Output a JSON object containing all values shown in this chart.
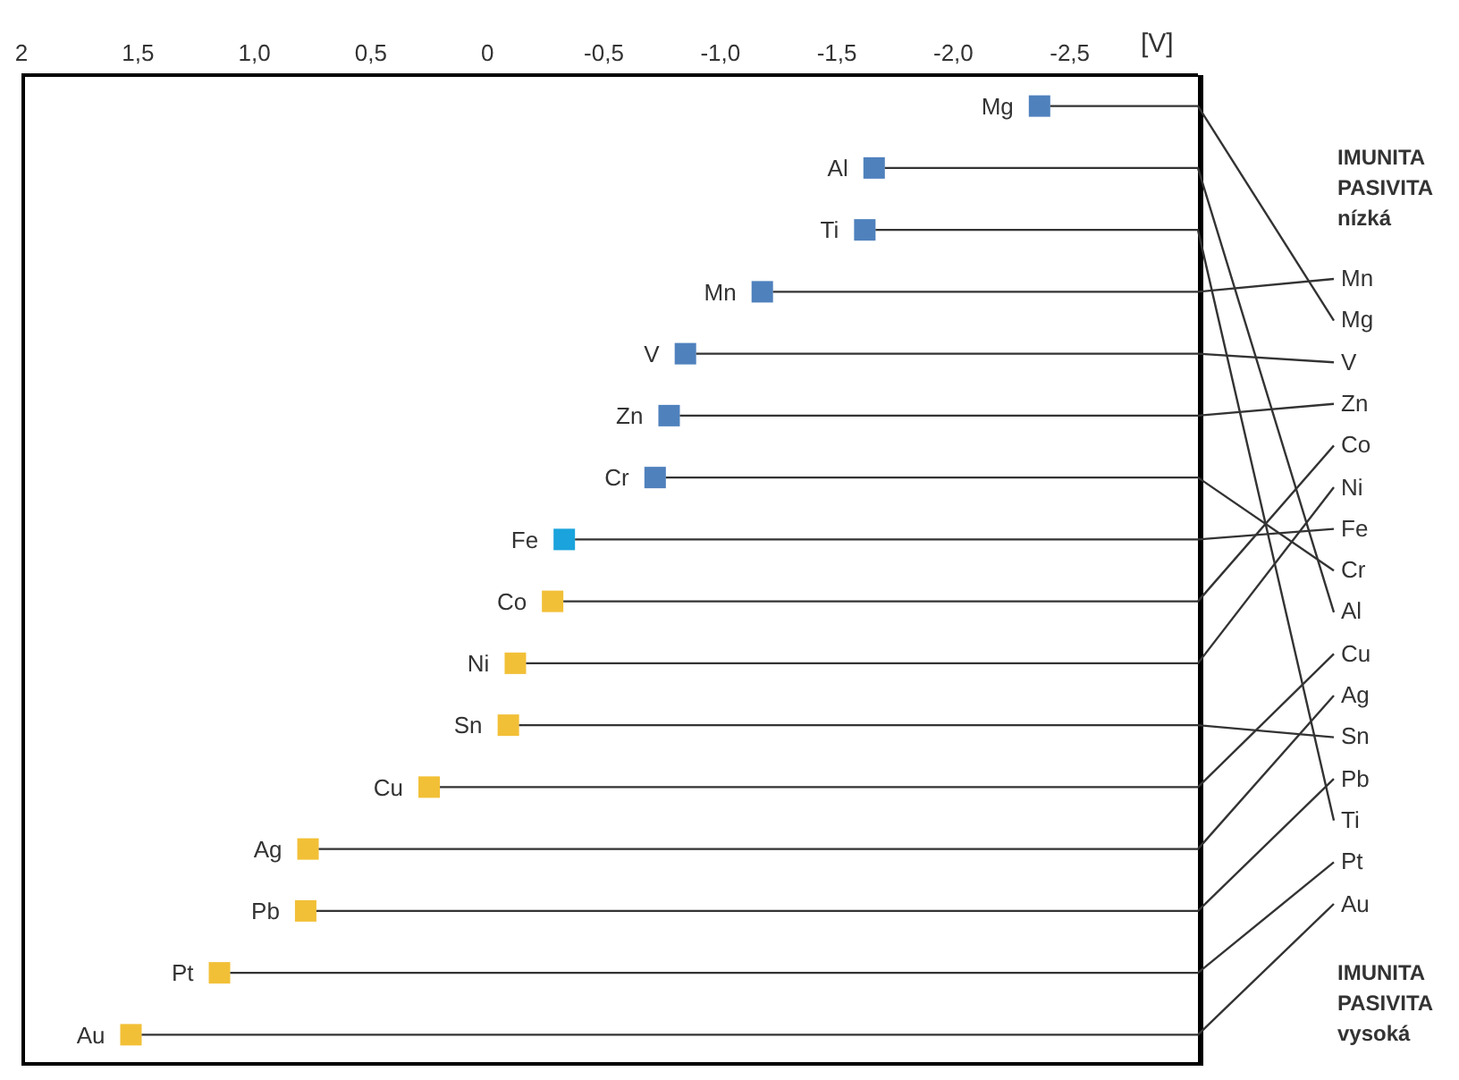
{
  "chart_data": [
    {
      "type": "lollipop",
      "orientation": "horizontal",
      "xlabel": "[V]",
      "marker": "square",
      "categories": [
        "Mg",
        "Al",
        "Ti",
        "Mn",
        "V",
        "Zn",
        "Cr",
        "Fe",
        "Co",
        "Ni",
        "Sn",
        "Cu",
        "Ag",
        "Pb",
        "Pt",
        "Au"
      ],
      "values": [
        -2.37,
        -1.66,
        -1.62,
        -1.18,
        -0.85,
        -0.78,
        -0.72,
        -0.33,
        -0.28,
        -0.12,
        -0.09,
        0.25,
        0.77,
        0.78,
        1.15,
        1.53
      ],
      "colors": [
        "#4f81bd",
        "#4f81bd",
        "#4f81bd",
        "#4f81bd",
        "#4f81bd",
        "#4f81bd",
        "#4f81bd",
        "#1aa3dc",
        "#f2c037",
        "#f2c037",
        "#f2c037",
        "#f2c037",
        "#f2c037",
        "#f2c037",
        "#f2c037",
        "#f2c037"
      ],
      "xlim": [
        2,
        -3.05
      ],
      "xticks": [
        2,
        {
          "value": 1.5,
          "label": "1,5"
        },
        {
          "value": 1,
          "label": "1,0"
        },
        {
          "value": 0.5,
          "label": "0,5"
        },
        0,
        {
          "value": -0.5,
          "label": "-0,5"
        },
        {
          "value": -1,
          "label": "-1,0"
        },
        {
          "value": -1.5,
          "label": "-1,5"
        },
        {
          "value": -2,
          "label": "-2,0"
        },
        {
          "value": -2.5,
          "label": "-2,5"
        }
      ]
    },
    {
      "type": "other",
      "categories": [
        "Mn",
        "Mg",
        "V",
        "Zn",
        "Co",
        "Ni",
        "Fe",
        "Cr",
        "Al",
        "Cu",
        "Ag",
        "Sn",
        "Pb",
        "Ti",
        "Pt",
        "Au"
      ],
      "annotations": [
        "IMUNITA PASIVITA nízká",
        "IMUNITA PASIVITA vysoká"
      ]
    }
  ]
}
